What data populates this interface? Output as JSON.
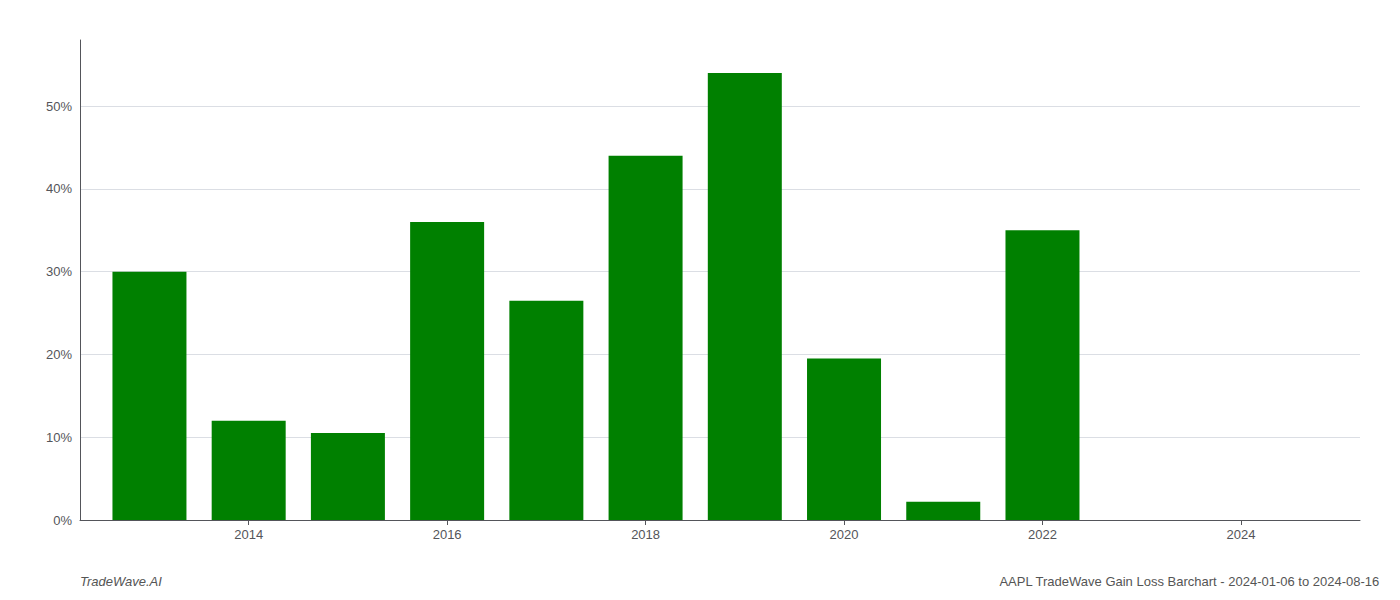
{
  "chart_data": {
    "type": "bar",
    "x": [
      2013,
      2014,
      2015,
      2016,
      2017,
      2018,
      2019,
      2020,
      2021,
      2022,
      2023
    ],
    "values": [
      0.3,
      0.12,
      0.105,
      0.36,
      0.265,
      0.44,
      0.54,
      0.195,
      0.022,
      0.35,
      0.0
    ],
    "color": "#008000",
    "xlim": [
      2012.3,
      2025.2
    ],
    "xticks": [
      2014,
      2016,
      2018,
      2020,
      2022,
      2024
    ],
    "ylim": [
      0,
      0.58
    ],
    "yticks": [
      {
        "value": 0.0,
        "label": "0%"
      },
      {
        "value": 0.1,
        "label": "10%"
      },
      {
        "value": 0.2,
        "label": "20%"
      },
      {
        "value": 0.3,
        "label": "30%"
      },
      {
        "value": 0.4,
        "label": "40%"
      },
      {
        "value": 0.5,
        "label": "50%"
      }
    ],
    "grid": true,
    "annotations": [
      "TradeWave.AI",
      "AAPL TradeWave Gain Loss Barchart - 2024-01-06 to 2024-08-16"
    ]
  }
}
